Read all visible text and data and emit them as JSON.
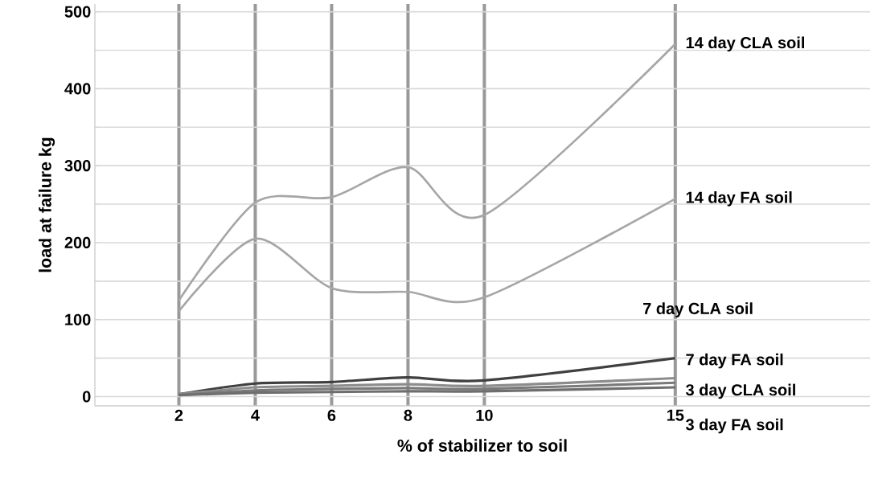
{
  "chart_data": {
    "type": "line",
    "xlabel": "% of stabilizer to soil",
    "ylabel": "load at failure kg",
    "x": [
      2,
      4,
      6,
      8,
      10,
      15
    ],
    "xlim": [
      -0.2,
      20.1
    ],
    "xticks": [
      2,
      4,
      6,
      8,
      10,
      15
    ],
    "ylim": [
      -12,
      510
    ],
    "yticks": [
      0,
      100,
      200,
      300,
      400,
      500
    ],
    "grid": true,
    "legend": false,
    "marker": "none",
    "line_style": "solid",
    "series": [
      {
        "name": "14 day CLA soil",
        "color": "#a6a6a6",
        "values": [
          125,
          252,
          259,
          298,
          236,
          458
        ]
      },
      {
        "name": "14 day FA soil",
        "color": "#a6a6a6",
        "values": [
          111,
          205,
          141,
          136,
          129,
          257
        ]
      },
      {
        "name": "7 day CLA soil",
        "color": "#404040",
        "values": [
          3,
          17,
          19,
          25,
          21,
          50
        ]
      },
      {
        "name": "7 day FA soil",
        "color": "#8c8c8c",
        "values": [
          3,
          12,
          14,
          16,
          14,
          24
        ]
      },
      {
        "name": "3 day CLA soil",
        "color": "#7a7a7a",
        "values": [
          2,
          8,
          10,
          11,
          10,
          18
        ]
      },
      {
        "name": "3 day FA soil",
        "color": "#6e6e6e",
        "values": [
          2,
          5,
          6,
          7,
          7,
          12
        ]
      }
    ]
  }
}
